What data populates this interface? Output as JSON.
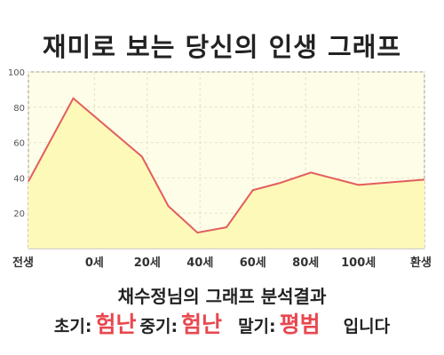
{
  "title": "재미로 보는 당신의 인생 그래프",
  "chart_data": {
    "type": "area",
    "x_labels": [
      "전생",
      "0세",
      "20세",
      "40세",
      "60세",
      "80세",
      "100세",
      "환생"
    ],
    "x": [
      -25,
      0,
      20,
      40,
      60,
      80,
      100,
      125
    ],
    "values": [
      [
        -25,
        38
      ],
      [
        -8,
        85
      ],
      [
        18,
        52
      ],
      [
        28,
        24
      ],
      [
        39,
        9
      ],
      [
        50,
        12
      ],
      [
        60,
        33
      ],
      [
        70,
        37
      ],
      [
        82,
        43
      ],
      [
        100,
        36
      ],
      [
        125,
        39
      ]
    ],
    "ylim": [
      0,
      100
    ],
    "y_ticks": [
      20,
      40,
      60,
      80,
      100
    ],
    "grid": true,
    "colors": {
      "line": "#e35d5d",
      "fill": "#fdf9b8",
      "plot_bg": "#fdfde8",
      "grid": "#e6e2c8"
    }
  },
  "analysis": {
    "heading": "채수정님의 그래프 분석결과",
    "early_label": "초기:",
    "early_value": "험난",
    "middle_label": "중기:",
    "middle_value": "험난",
    "late_label": "말기:",
    "late_value": "평범",
    "suffix": "입니다"
  }
}
